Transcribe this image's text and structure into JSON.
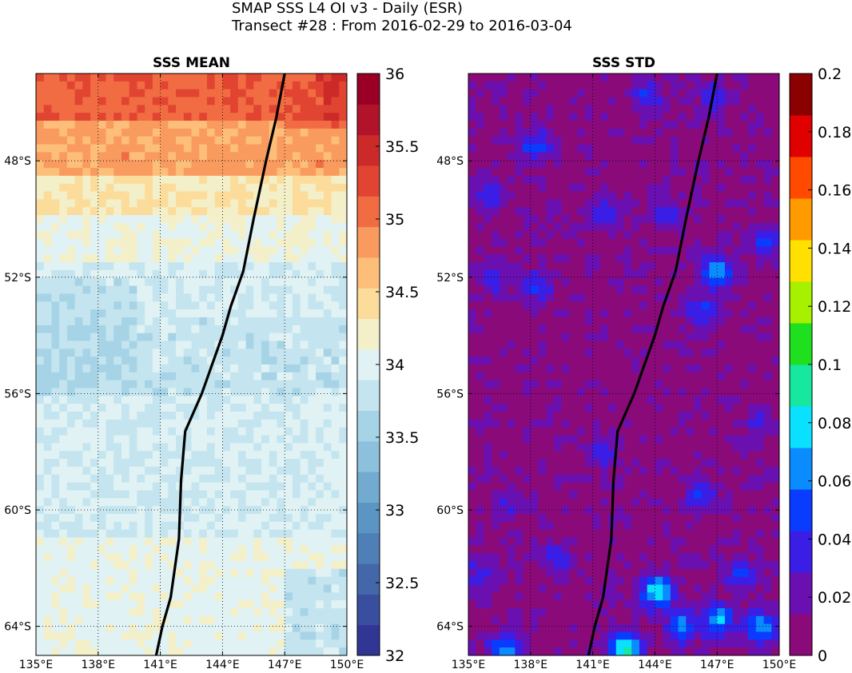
{
  "figure": {
    "title_line1": "SMAP SSS L4 OI v3 - Daily (ESR)",
    "title_line2": "Transect #28 : From 2016-02-29 to 2016-03-04"
  },
  "chart_data": [
    {
      "type": "heatmap",
      "title": "SSS MEAN",
      "xlim": [
        135,
        150
      ],
      "ylim": [
        -65,
        -45
      ],
      "x_ticks": [
        135,
        138,
        141,
        144,
        147,
        150
      ],
      "x_tick_labels": [
        "135°E",
        "138°E",
        "141°E",
        "144°E",
        "147°E",
        "150°E"
      ],
      "y_ticks": [
        -48,
        -52,
        -56,
        -60,
        -64
      ],
      "y_tick_labels": [
        "48°S",
        "52°S",
        "56°S",
        "60°S",
        "64°S"
      ],
      "grid": true,
      "colorbar": {
        "min": 32,
        "max": 36,
        "step": 0.25,
        "ticks": [
          32,
          32.5,
          33,
          33.5,
          34,
          34.5,
          35,
          35.5,
          36
        ],
        "tick_labels": [
          "32",
          "32.5",
          "33",
          "33.5",
          "34",
          "34.5",
          "35",
          "35.5",
          "36"
        ],
        "colormap": "RdYlBu_r (discrete)",
        "colors": [
          "#313695",
          "#3a4e9f",
          "#4467aa",
          "#4f7fb7",
          "#5b95c3",
          "#72aad0",
          "#8cc0dc",
          "#a6d4e6",
          "#c4e5ef",
          "#e0f2f4",
          "#f3efc9",
          "#fbdc9a",
          "#fdbe7a",
          "#f99a5e",
          "#f26c43",
          "#e14431",
          "#cc2a28",
          "#b0132a",
          "#9a0026"
        ]
      },
      "field_zones": [
        {
          "lat_max": -45,
          "lat_min": -46.5,
          "value": 35.1
        },
        {
          "lat_max": -46.5,
          "lat_min": -48.5,
          "value": 34.8
        },
        {
          "lat_max": -48.5,
          "lat_min": -50,
          "value": 34.3
        },
        {
          "lat_max": -50,
          "lat_min": -51.5,
          "value": 34.1
        },
        {
          "lat_max": -51.5,
          "lat_min": -53.5,
          "value": 33.9
        },
        {
          "lat_max": -53.5,
          "lat_min": -56,
          "value": 33.8
        },
        {
          "lat_max": -56,
          "lat_min": -61,
          "value": 33.9
        },
        {
          "lat_max": -61,
          "lat_min": -65,
          "value": 34.05
        }
      ],
      "transect": {
        "lon": [
          140.8,
          141.1,
          141.5,
          141.9,
          142.0,
          142.2,
          143.0,
          143.5,
          144.0,
          144.4,
          145.0,
          145.5,
          146.1,
          146.6,
          147.0
        ],
        "lat": [
          -65,
          -64,
          -63,
          -61,
          -59,
          -57.3,
          -56,
          -55,
          -54,
          -53,
          -51.8,
          -50,
          -48,
          -46.5,
          -45
        ]
      }
    },
    {
      "type": "heatmap",
      "title": "SSS STD",
      "xlim": [
        135,
        150
      ],
      "ylim": [
        -65,
        -45
      ],
      "x_ticks": [
        135,
        138,
        141,
        144,
        147,
        150
      ],
      "x_tick_labels": [
        "135°E",
        "138°E",
        "141°E",
        "144°E",
        "147°E",
        "150°E"
      ],
      "y_ticks": [
        -48,
        -52,
        -56,
        -60,
        -64
      ],
      "y_tick_labels": [
        "48°S",
        "52°S",
        "56°S",
        "60°S",
        "64°S"
      ],
      "grid": true,
      "colorbar": {
        "min": 0,
        "max": 0.2,
        "ticks": [
          0,
          0.02,
          0.04,
          0.06,
          0.08,
          0.1,
          0.12,
          0.14,
          0.16,
          0.18,
          0.2
        ],
        "tick_labels": [
          "0",
          "0.02",
          "0.04",
          "0.06",
          "0.08",
          "0.1",
          "0.12",
          "0.14",
          "0.16",
          "0.18",
          "0.2"
        ],
        "colormap": "jet-like",
        "colors": [
          "#8b0a7a",
          "#6a10b0",
          "#3a1ee6",
          "#0a3cff",
          "#0a8cff",
          "#0ae0ff",
          "#18e7a0",
          "#1ee01e",
          "#a6f000",
          "#ffe000",
          "#ff9a00",
          "#ff4a00",
          "#e00000",
          "#8b0000"
        ]
      },
      "background_value": 0.005,
      "blobs": [
        {
          "lon": 138.2,
          "lat": -47.5,
          "value": 0.035
        },
        {
          "lon": 136.0,
          "lat": -49.2,
          "value": 0.03
        },
        {
          "lon": 141.5,
          "lat": -49.8,
          "value": 0.028
        },
        {
          "lon": 144.6,
          "lat": -49.8,
          "value": 0.03
        },
        {
          "lon": 143.6,
          "lat": -45.8,
          "value": 0.03
        },
        {
          "lon": 146.8,
          "lat": -45.8,
          "value": 0.025
        },
        {
          "lon": 149.4,
          "lat": -50.8,
          "value": 0.035
        },
        {
          "lon": 147.0,
          "lat": -51.8,
          "value": 0.06
        },
        {
          "lon": 146.3,
          "lat": -53.2,
          "value": 0.035
        },
        {
          "lon": 138.3,
          "lat": -52.3,
          "value": 0.035
        },
        {
          "lon": 136.3,
          "lat": -52.0,
          "value": 0.025
        },
        {
          "lon": 141.5,
          "lat": -58.0,
          "value": 0.025
        },
        {
          "lon": 146.2,
          "lat": -59.5,
          "value": 0.03
        },
        {
          "lon": 149.0,
          "lat": -57.0,
          "value": 0.02
        },
        {
          "lon": 137.0,
          "lat": -59.8,
          "value": 0.02
        },
        {
          "lon": 144.1,
          "lat": -62.8,
          "value": 0.075
        },
        {
          "lon": 147.1,
          "lat": -63.8,
          "value": 0.06
        },
        {
          "lon": 145.3,
          "lat": -64.0,
          "value": 0.05
        },
        {
          "lon": 149.1,
          "lat": -64.0,
          "value": 0.055
        },
        {
          "lon": 148.2,
          "lat": -62.2,
          "value": 0.035
        },
        {
          "lon": 136.8,
          "lat": -64.8,
          "value": 0.06
        },
        {
          "lon": 142.6,
          "lat": -64.8,
          "value": 0.09
        },
        {
          "lon": 139.3,
          "lat": -61.7,
          "value": 0.025
        },
        {
          "lon": 135.6,
          "lat": -62.2,
          "value": 0.03
        }
      ],
      "transect": {
        "lon": [
          140.8,
          141.1,
          141.5,
          141.9,
          142.0,
          142.2,
          143.0,
          143.5,
          144.0,
          144.4,
          145.0,
          145.5,
          146.1,
          146.6,
          147.0
        ],
        "lat": [
          -65,
          -64,
          -63,
          -61,
          -59,
          -57.3,
          -56,
          -55,
          -54,
          -53,
          -51.8,
          -50,
          -48,
          -46.5,
          -45
        ]
      }
    }
  ]
}
